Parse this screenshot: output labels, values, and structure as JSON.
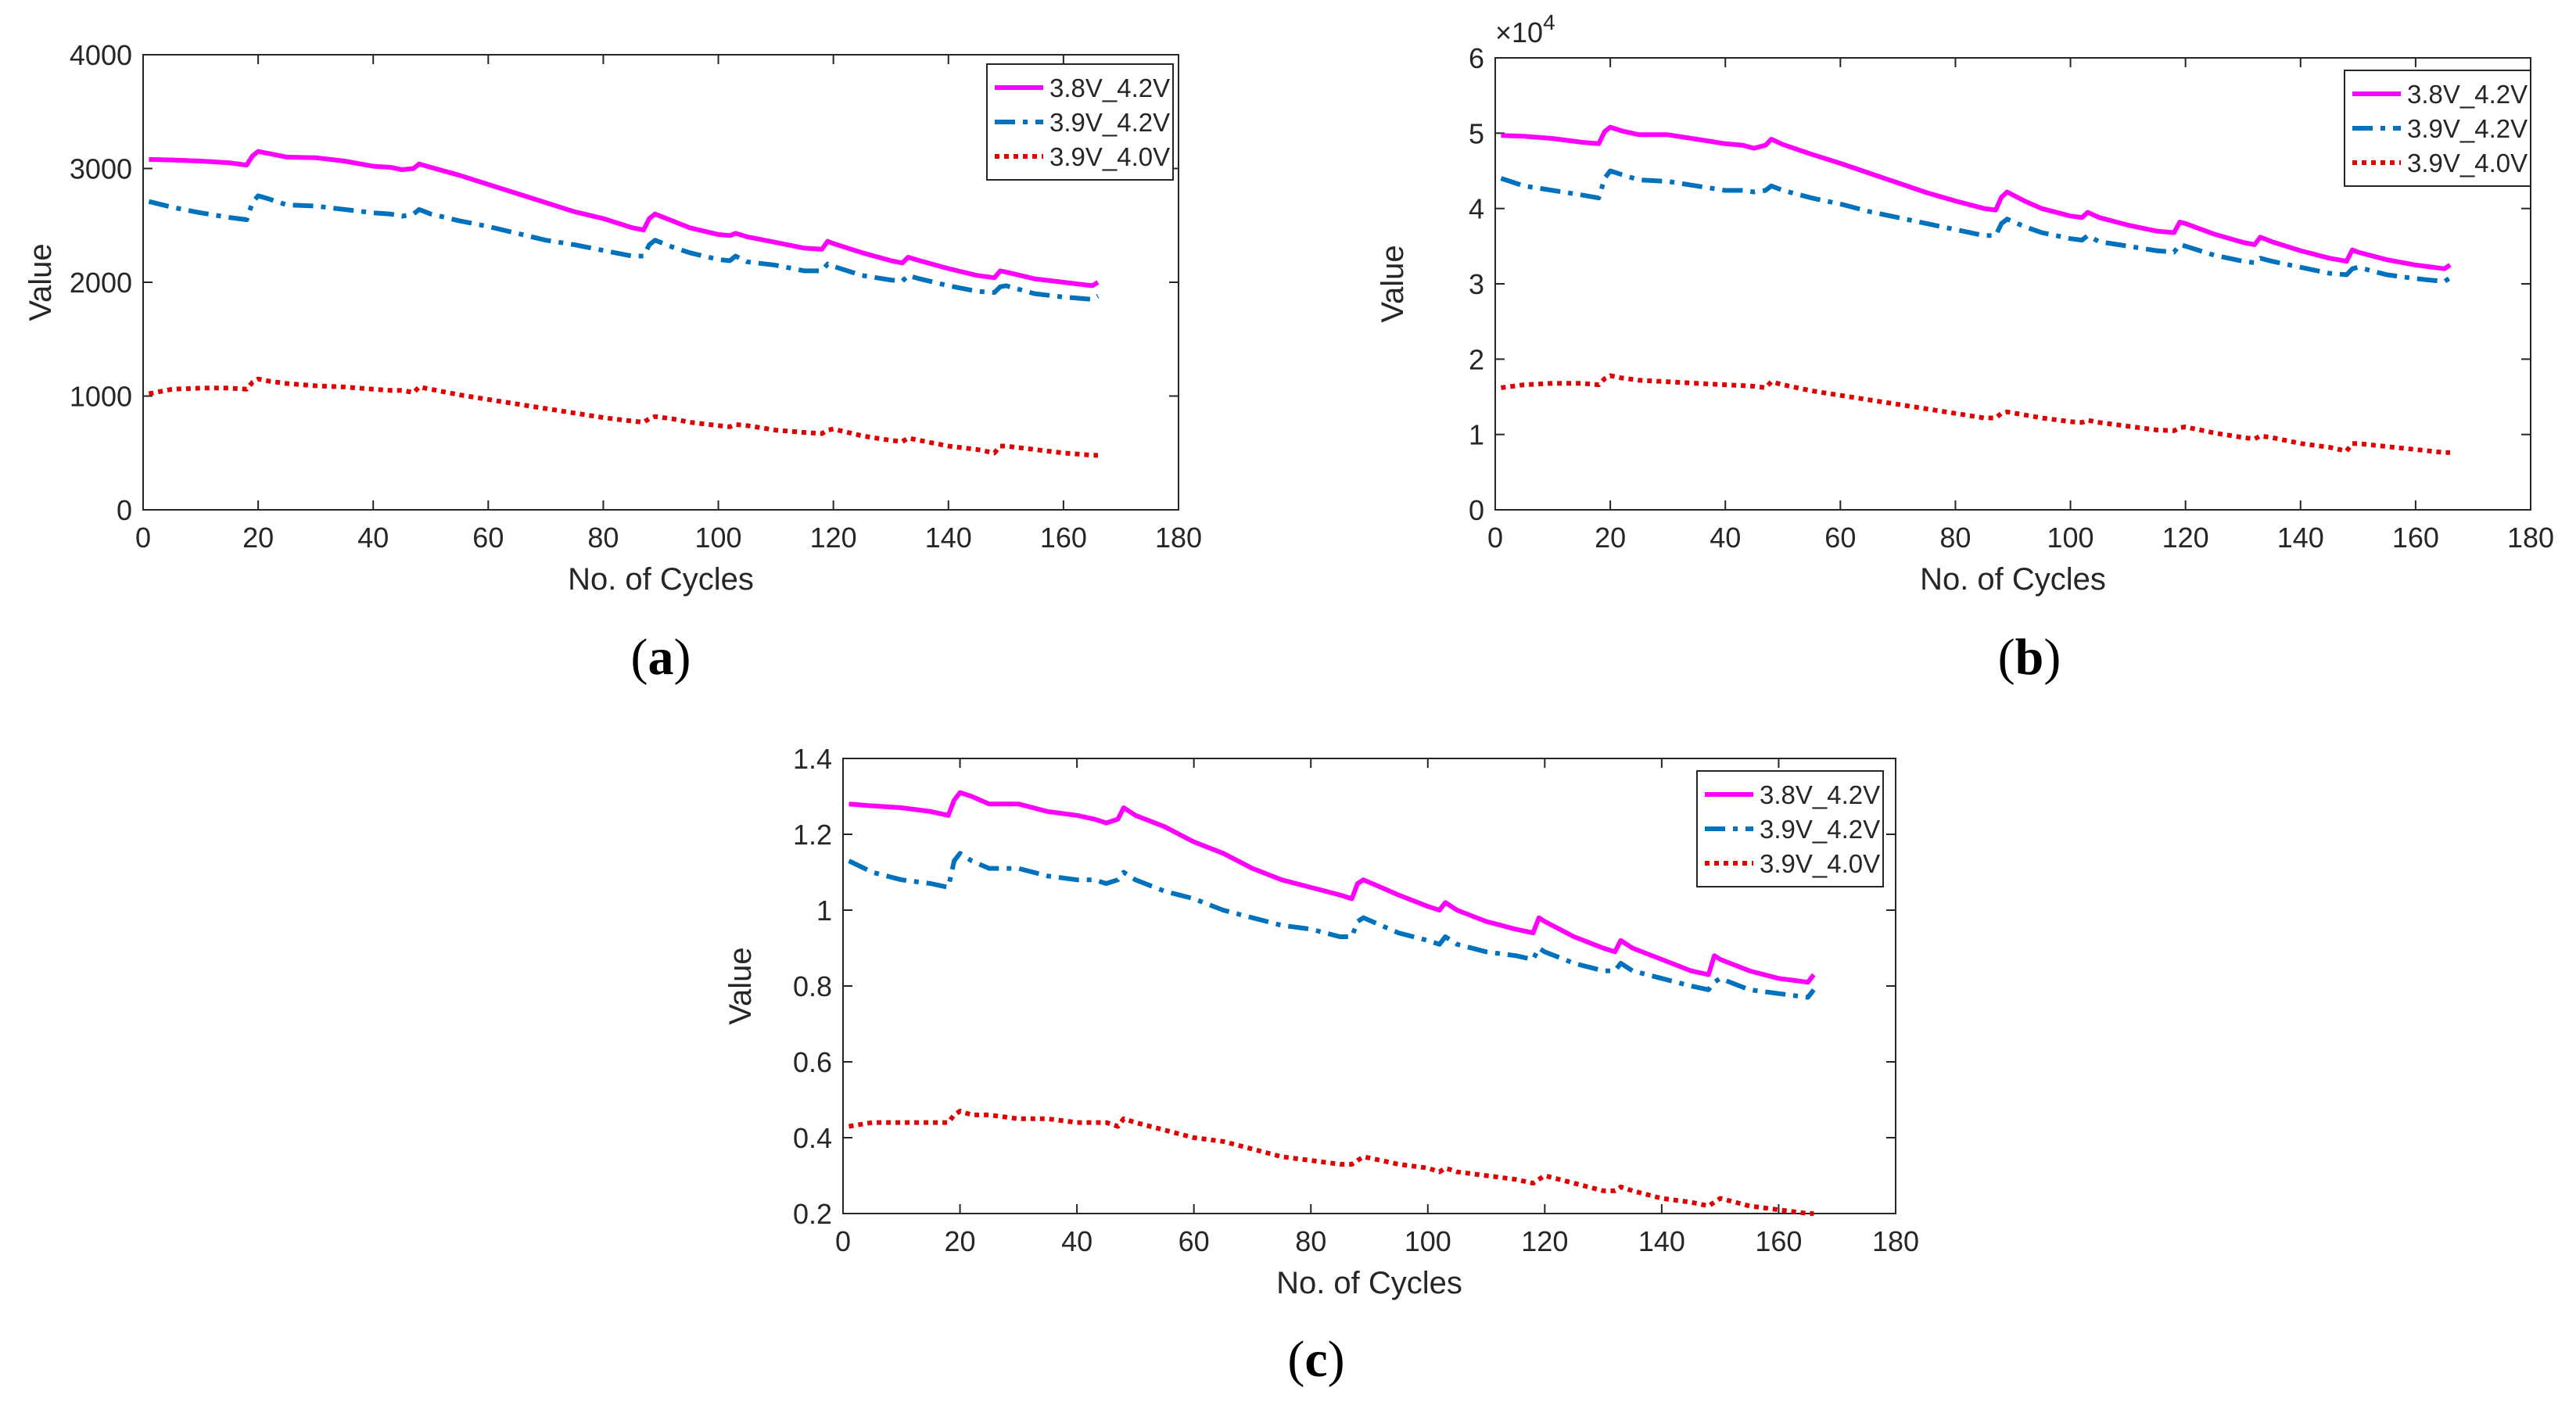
{
  "chart_data": [
    {
      "type": "line",
      "panel_label": "(a)",
      "xlabel": "No. of Cycles",
      "ylabel": "Value",
      "exponent_label": "",
      "xlim": [
        0,
        180
      ],
      "ylim": [
        0,
        4000
      ],
      "xticks": [
        "0",
        "20",
        "40",
        "60",
        "80",
        "100",
        "120",
        "140",
        "160",
        "180"
      ],
      "yticks": [
        "0",
        "1000",
        "2000",
        "3000",
        "4000"
      ],
      "legend_position": "top-right",
      "grid": false,
      "x": [
        1,
        5,
        10,
        15,
        18,
        19,
        20,
        22,
        25,
        30,
        35,
        40,
        43,
        45,
        47,
        48,
        50,
        55,
        60,
        65,
        70,
        75,
        80,
        85,
        87,
        88,
        89,
        92,
        95,
        100,
        102,
        103,
        105,
        110,
        115,
        118,
        119,
        120,
        125,
        130,
        132,
        133,
        135,
        140,
        145,
        148,
        149,
        150,
        155,
        160,
        165,
        166
      ],
      "series": [
        {
          "name": "3.8V_4.2V",
          "color": "#ff00ff",
          "style": "solid",
          "values": [
            3080,
            3075,
            3065,
            3050,
            3030,
            3110,
            3150,
            3130,
            3100,
            3095,
            3065,
            3020,
            3010,
            2990,
            3000,
            3040,
            3010,
            2940,
            2860,
            2780,
            2700,
            2620,
            2560,
            2480,
            2460,
            2560,
            2600,
            2540,
            2480,
            2420,
            2410,
            2430,
            2400,
            2350,
            2300,
            2290,
            2360,
            2340,
            2260,
            2190,
            2170,
            2220,
            2190,
            2120,
            2060,
            2040,
            2100,
            2090,
            2030,
            2000,
            1970,
            2000
          ]
        },
        {
          "name": "3.9V_4.2V",
          "color": "#0072bd",
          "style": "dashdot",
          "values": [
            2710,
            2660,
            2610,
            2570,
            2550,
            2700,
            2760,
            2730,
            2680,
            2670,
            2640,
            2610,
            2600,
            2580,
            2600,
            2640,
            2600,
            2540,
            2490,
            2430,
            2370,
            2330,
            2280,
            2230,
            2230,
            2330,
            2370,
            2310,
            2260,
            2200,
            2190,
            2230,
            2180,
            2150,
            2100,
            2100,
            2160,
            2140,
            2060,
            2020,
            2010,
            2060,
            2030,
            1970,
            1920,
            1910,
            1960,
            1970,
            1900,
            1870,
            1850,
            1880
          ]
        },
        {
          "name": "3.9V_4.0V",
          "color": "#e00000",
          "style": "dotted",
          "values": [
            1020,
            1060,
            1070,
            1070,
            1060,
            1120,
            1150,
            1130,
            1110,
            1090,
            1080,
            1060,
            1050,
            1050,
            1030,
            1080,
            1060,
            1010,
            970,
            930,
            890,
            850,
            810,
            780,
            770,
            800,
            820,
            800,
            770,
            740,
            730,
            750,
            740,
            700,
            680,
            670,
            700,
            710,
            650,
            610,
            600,
            630,
            610,
            560,
            530,
            500,
            560,
            560,
            530,
            500,
            480,
            480
          ]
        }
      ]
    },
    {
      "type": "line",
      "panel_label": "(b)",
      "xlabel": "No. of Cycles",
      "ylabel": "Value",
      "exponent_label": "×10",
      "exponent_power": "4",
      "xlim": [
        0,
        180
      ],
      "ylim": [
        0,
        6
      ],
      "xticks": [
        "0",
        "20",
        "40",
        "60",
        "80",
        "100",
        "120",
        "140",
        "160",
        "180"
      ],
      "yticks": [
        "0",
        "1",
        "2",
        "3",
        "4",
        "5",
        "6"
      ],
      "legend_position": "top-right",
      "grid": false,
      "x": [
        1,
        5,
        10,
        15,
        18,
        19,
        20,
        22,
        25,
        30,
        35,
        40,
        43,
        45,
        47,
        48,
        50,
        55,
        60,
        65,
        70,
        75,
        80,
        85,
        87,
        88,
        89,
        92,
        95,
        100,
        102,
        103,
        105,
        110,
        115,
        118,
        119,
        120,
        125,
        130,
        132,
        133,
        135,
        140,
        145,
        148,
        149,
        150,
        155,
        160,
        165,
        166
      ],
      "series": [
        {
          "name": "3.8V_4.2V",
          "color": "#ff00ff",
          "style": "solid",
          "values": [
            4.97,
            4.96,
            4.93,
            4.88,
            4.86,
            5.02,
            5.08,
            5.03,
            4.98,
            4.98,
            4.92,
            4.86,
            4.84,
            4.8,
            4.84,
            4.92,
            4.85,
            4.72,
            4.6,
            4.47,
            4.34,
            4.21,
            4.1,
            4.0,
            3.98,
            4.15,
            4.22,
            4.1,
            4.0,
            3.9,
            3.88,
            3.95,
            3.88,
            3.78,
            3.7,
            3.68,
            3.82,
            3.8,
            3.66,
            3.55,
            3.52,
            3.62,
            3.56,
            3.44,
            3.34,
            3.3,
            3.45,
            3.42,
            3.32,
            3.25,
            3.2,
            3.25
          ]
        },
        {
          "name": "3.9V_4.2V",
          "color": "#0072bd",
          "style": "dashdot",
          "values": [
            4.4,
            4.3,
            4.24,
            4.18,
            4.14,
            4.4,
            4.5,
            4.45,
            4.38,
            4.36,
            4.3,
            4.24,
            4.24,
            4.22,
            4.24,
            4.3,
            4.24,
            4.14,
            4.06,
            3.96,
            3.88,
            3.8,
            3.72,
            3.64,
            3.64,
            3.8,
            3.86,
            3.76,
            3.68,
            3.6,
            3.58,
            3.64,
            3.56,
            3.5,
            3.44,
            3.42,
            3.52,
            3.5,
            3.38,
            3.3,
            3.28,
            3.34,
            3.3,
            3.22,
            3.14,
            3.12,
            3.2,
            3.22,
            3.12,
            3.07,
            3.03,
            3.08
          ]
        },
        {
          "name": "3.9V_4.0V",
          "color": "#e00000",
          "style": "dotted",
          "values": [
            1.62,
            1.66,
            1.68,
            1.68,
            1.66,
            1.74,
            1.78,
            1.75,
            1.72,
            1.7,
            1.68,
            1.66,
            1.65,
            1.64,
            1.62,
            1.7,
            1.66,
            1.58,
            1.52,
            1.46,
            1.4,
            1.34,
            1.28,
            1.22,
            1.22,
            1.28,
            1.3,
            1.26,
            1.22,
            1.17,
            1.16,
            1.19,
            1.16,
            1.11,
            1.06,
            1.05,
            1.09,
            1.1,
            1.02,
            0.96,
            0.94,
            0.98,
            0.96,
            0.88,
            0.83,
            0.78,
            0.88,
            0.88,
            0.84,
            0.8,
            0.76,
            0.76
          ]
        }
      ]
    },
    {
      "type": "line",
      "panel_label": "(c)",
      "xlabel": "No. of Cycles",
      "ylabel": "Value",
      "exponent_label": "",
      "xlim": [
        0,
        180
      ],
      "ylim": [
        0.2,
        1.4
      ],
      "xticks": [
        "0",
        "20",
        "40",
        "60",
        "80",
        "100",
        "120",
        "140",
        "160",
        "180"
      ],
      "yticks": [
        "0.2",
        "0.4",
        "0.6",
        "0.8",
        "1",
        "1.2",
        "1.4"
      ],
      "legend_position": "top-right",
      "grid": false,
      "x": [
        1,
        5,
        10,
        15,
        18,
        19,
        20,
        22,
        25,
        30,
        35,
        40,
        43,
        45,
        47,
        48,
        50,
        55,
        60,
        65,
        70,
        75,
        80,
        85,
        87,
        88,
        89,
        92,
        95,
        100,
        102,
        103,
        105,
        110,
        115,
        118,
        119,
        120,
        125,
        130,
        132,
        133,
        135,
        140,
        145,
        148,
        149,
        150,
        155,
        160,
        165,
        166
      ],
      "series": [
        {
          "name": "3.8V_4.2V",
          "color": "#ff00ff",
          "style": "solid",
          "values": [
            1.28,
            1.275,
            1.27,
            1.26,
            1.25,
            1.29,
            1.31,
            1.3,
            1.28,
            1.28,
            1.26,
            1.25,
            1.24,
            1.23,
            1.24,
            1.27,
            1.25,
            1.22,
            1.18,
            1.15,
            1.11,
            1.08,
            1.06,
            1.04,
            1.03,
            1.07,
            1.08,
            1.06,
            1.04,
            1.01,
            1.0,
            1.02,
            1.0,
            0.97,
            0.95,
            0.94,
            0.98,
            0.97,
            0.93,
            0.9,
            0.89,
            0.92,
            0.9,
            0.87,
            0.84,
            0.83,
            0.88,
            0.87,
            0.84,
            0.82,
            0.81,
            0.83
          ]
        },
        {
          "name": "3.9V_4.2V",
          "color": "#0072bd",
          "style": "dashdot",
          "values": [
            1.13,
            1.1,
            1.08,
            1.07,
            1.06,
            1.13,
            1.15,
            1.13,
            1.11,
            1.11,
            1.09,
            1.08,
            1.08,
            1.07,
            1.08,
            1.1,
            1.08,
            1.05,
            1.03,
            1.0,
            0.98,
            0.96,
            0.95,
            0.93,
            0.93,
            0.97,
            0.98,
            0.96,
            0.94,
            0.92,
            0.91,
            0.93,
            0.91,
            0.89,
            0.88,
            0.87,
            0.9,
            0.89,
            0.86,
            0.84,
            0.84,
            0.86,
            0.84,
            0.82,
            0.8,
            0.79,
            0.81,
            0.82,
            0.79,
            0.78,
            0.77,
            0.79
          ]
        },
        {
          "name": "3.9V_4.0V",
          "color": "#e00000",
          "style": "dotted",
          "values": [
            0.43,
            0.44,
            0.44,
            0.44,
            0.44,
            0.46,
            0.47,
            0.46,
            0.46,
            0.45,
            0.45,
            0.44,
            0.44,
            0.44,
            0.43,
            0.45,
            0.44,
            0.42,
            0.4,
            0.39,
            0.37,
            0.35,
            0.34,
            0.33,
            0.33,
            0.34,
            0.35,
            0.34,
            0.33,
            0.32,
            0.31,
            0.32,
            0.31,
            0.3,
            0.29,
            0.28,
            0.29,
            0.3,
            0.28,
            0.26,
            0.26,
            0.27,
            0.26,
            0.24,
            0.23,
            0.22,
            0.23,
            0.24,
            0.22,
            0.21,
            0.2,
            0.2
          ]
        }
      ]
    }
  ]
}
